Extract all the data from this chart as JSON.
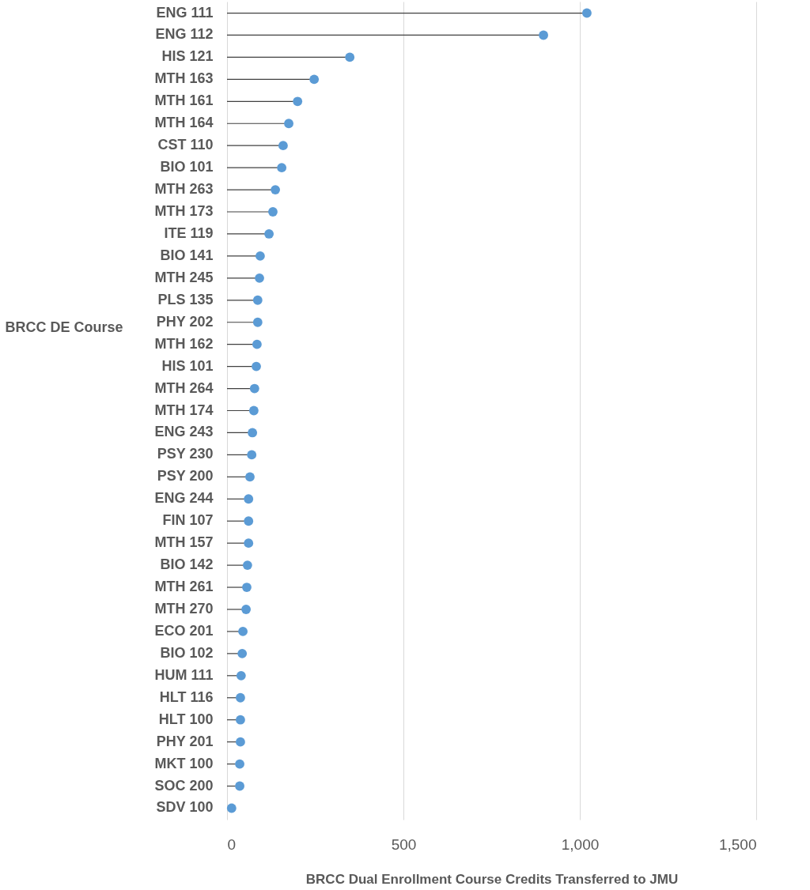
{
  "chart_data": {
    "type": "lollipop",
    "orientation": "horizontal",
    "xlabel": "BRCC Dual Enrollment Course Credits Transferred to JMU",
    "ylabel": "BRCC DE Course",
    "categories": [
      "ENG 111",
      "ENG 112",
      "HIS 121",
      "MTH 163",
      "MTH 161",
      "MTH 164",
      "CST 110",
      "BIO 101",
      "MTH 263",
      "MTH 173",
      "ITE 119",
      "BIO 141",
      "MTH 245",
      "PLS 135",
      "PHY 202",
      "MTH 162",
      "HIS 101",
      "MTH 264",
      "MTH 174",
      "ENG 243",
      "PSY 230",
      "PSY 200",
      "ENG 244",
      "FIN 107",
      "MTH 157",
      "BIO 142",
      "MTH 261",
      "MTH 270",
      "ECO 201",
      "BIO 102",
      "HUM 111",
      "HLT 116",
      "HLT 100",
      "PHY 201",
      "MKT 100",
      "SOC 200",
      "SDV 100"
    ],
    "values": [
      1020,
      897,
      348,
      247,
      200,
      175,
      159,
      155,
      137,
      130,
      119,
      94,
      92,
      87,
      87,
      85,
      83,
      78,
      76,
      72,
      70,
      65,
      61,
      61,
      61,
      58,
      56,
      54,
      45,
      43,
      40,
      38,
      38,
      38,
      36,
      36,
      13
    ],
    "color": "#5b9bd5",
    "xlim": [
      0,
      1500
    ],
    "xticks": [
      0,
      500,
      {
        "value": 1000,
        "label": "1,000"
      },
      {
        "value": 1500,
        "label": "1,500"
      }
    ],
    "grid": "x",
    "marker": "circle"
  }
}
